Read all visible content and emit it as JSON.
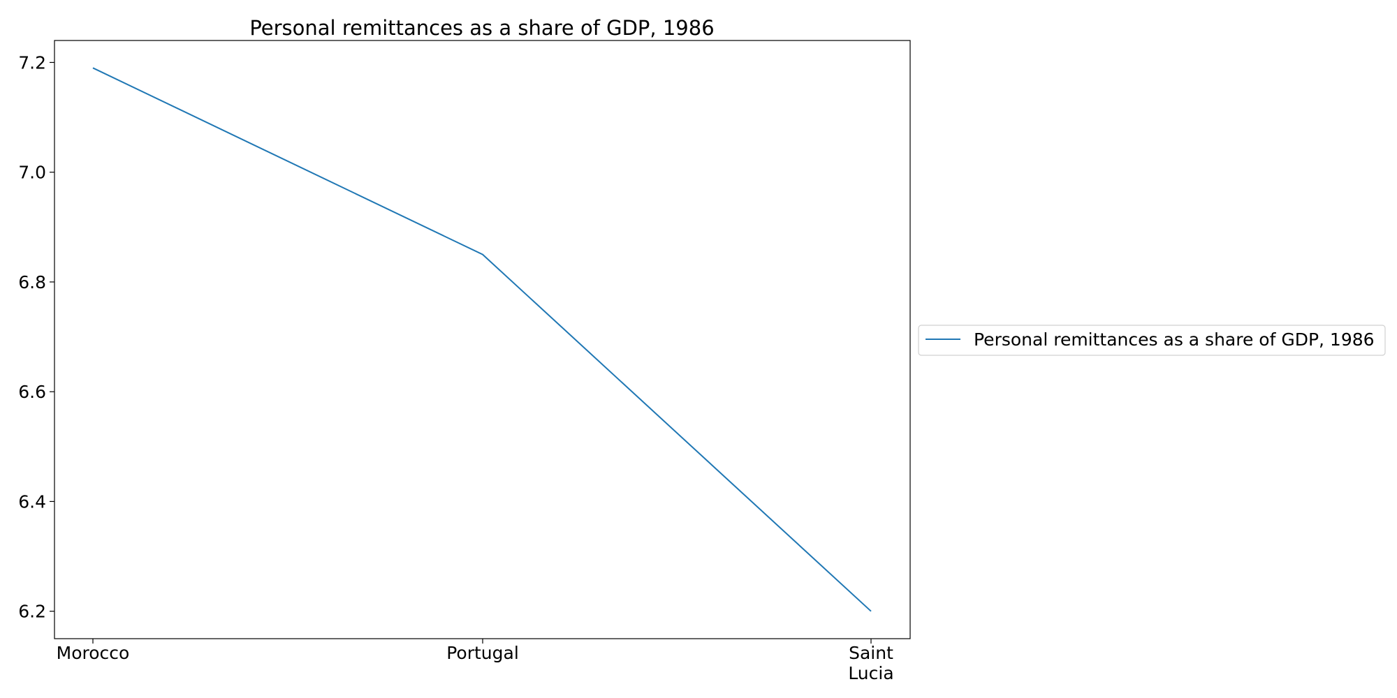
{
  "chart_data": {
    "type": "line",
    "title": "Personal remittances as a share of GDP, 1986",
    "xlabel": "",
    "ylabel": "",
    "categories": [
      "Morocco",
      "Portugal",
      "Saint\nLucia"
    ],
    "series": [
      {
        "name": "Personal remittances as a share of GDP, 1986",
        "values": [
          7.19,
          6.85,
          6.2
        ],
        "color": "#1f77b4"
      }
    ],
    "ylim": [
      6.15,
      7.24
    ],
    "yticks": [
      "6.2",
      "6.4",
      "6.6",
      "6.8",
      "7.0",
      "7.2"
    ],
    "grid": false,
    "legend_position": "center-right, outside plot"
  }
}
